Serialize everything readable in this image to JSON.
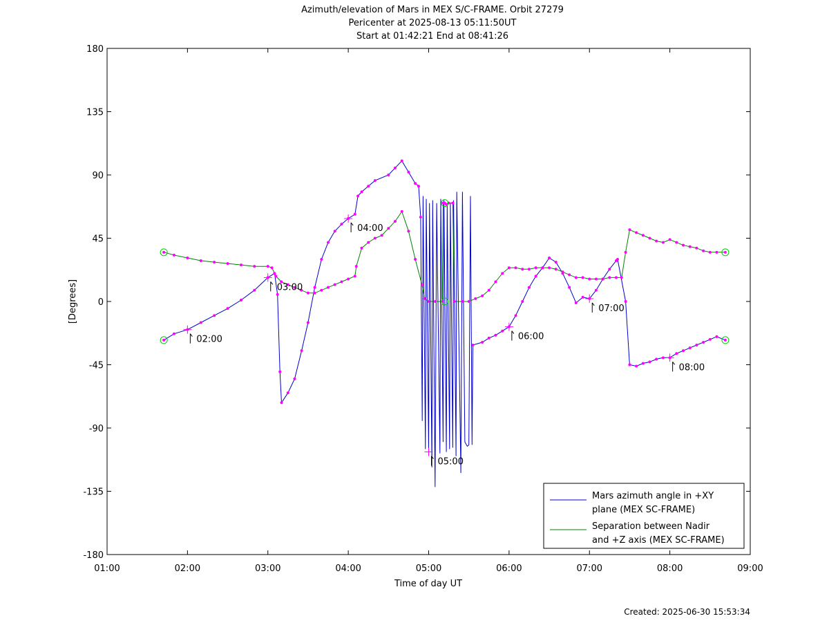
{
  "chart_data": {
    "type": "line",
    "title_lines": [
      "Azimuth/elevation of Mars in MEX S/C-FRAME.  Orbit 27279",
      "Pericenter at 2025-08-13 05:11:50UT",
      "Start at 01:42:21 End at 08:41:26"
    ],
    "xlabel": "Time of day UT",
    "ylabel": "[Degrees]",
    "xlim": [
      1,
      9
    ],
    "ylim": [
      -180,
      180
    ],
    "x_ticks": [
      {
        "v": 1,
        "label": "01:00"
      },
      {
        "v": 2,
        "label": "02:00"
      },
      {
        "v": 3,
        "label": "03:00"
      },
      {
        "v": 4,
        "label": "04:00"
      },
      {
        "v": 5,
        "label": "05:00"
      },
      {
        "v": 6,
        "label": "06:00"
      },
      {
        "v": 7,
        "label": "07:00"
      },
      {
        "v": 8,
        "label": "08:00"
      },
      {
        "v": 9,
        "label": "09:00"
      }
    ],
    "y_ticks": [
      {
        "v": 180,
        "label": "180"
      },
      {
        "v": 135,
        "label": "135"
      },
      {
        "v": 90,
        "label": "90"
      },
      {
        "v": 45,
        "label": "45"
      },
      {
        "v": 0,
        "label": "0"
      },
      {
        "v": -45,
        "label": "-45"
      },
      {
        "v": -90,
        "label": "-90"
      },
      {
        "v": -135,
        "label": "-135"
      },
      {
        "v": -180,
        "label": "-180"
      }
    ],
    "grid": false,
    "legend_position": "bottom-right",
    "colors": {
      "azimuth": "#0000cc",
      "separation": "#008000",
      "marker": "#ff00ff",
      "endpoint": "#00cc00"
    },
    "series": [
      {
        "name_lines": [
          "Mars azimuth angle in +XY",
          "plane (MEX SC-FRAME)"
        ],
        "color": "#0000cc",
        "points": [
          [
            1.706,
            -27.5
          ],
          [
            1.833,
            -23
          ],
          [
            2.0,
            -20
          ],
          [
            2.167,
            -15
          ],
          [
            2.333,
            -10
          ],
          [
            2.5,
            -5
          ],
          [
            2.667,
            1
          ],
          [
            2.833,
            8
          ],
          [
            3.0,
            17
          ],
          [
            3.083,
            20
          ],
          [
            3.12,
            5
          ],
          [
            3.15,
            -50
          ],
          [
            3.17,
            -72
          ],
          [
            3.25,
            -65
          ],
          [
            3.333,
            -55
          ],
          [
            3.42,
            -35
          ],
          [
            3.5,
            -15
          ],
          [
            3.583,
            10
          ],
          [
            3.667,
            30
          ],
          [
            3.75,
            42
          ],
          [
            3.833,
            50
          ],
          [
            3.917,
            55
          ],
          [
            4.0,
            59
          ],
          [
            4.083,
            62
          ],
          [
            4.12,
            75
          ],
          [
            4.167,
            78
          ],
          [
            4.25,
            82
          ],
          [
            4.333,
            86
          ],
          [
            4.5,
            90
          ],
          [
            4.583,
            95
          ],
          [
            4.667,
            100
          ],
          [
            4.75,
            92
          ],
          [
            4.833,
            84
          ],
          [
            4.875,
            82
          ],
          [
            4.9,
            60
          ],
          [
            4.92,
            -85
          ],
          [
            4.93,
            75
          ],
          [
            4.96,
            -105
          ],
          [
            4.97,
            73
          ],
          [
            5.0,
            -107
          ],
          [
            5.01,
            70
          ],
          [
            5.04,
            -118
          ],
          [
            5.05,
            72
          ],
          [
            5.08,
            -132
          ],
          [
            5.1,
            70
          ],
          [
            5.14,
            -108
          ],
          [
            5.15,
            73
          ],
          [
            5.18,
            -100
          ],
          [
            5.19,
            72
          ],
          [
            5.22,
            -107
          ],
          [
            5.23,
            70
          ],
          [
            5.26,
            -105
          ],
          [
            5.27,
            70
          ],
          [
            5.3,
            -104
          ],
          [
            5.31,
            72
          ],
          [
            5.34,
            -110
          ],
          [
            5.35,
            78
          ],
          [
            5.4,
            -122
          ],
          [
            5.42,
            78
          ],
          [
            5.45,
            -100
          ],
          [
            5.48,
            -103
          ],
          [
            5.5,
            -102
          ],
          [
            5.52,
            75
          ],
          [
            5.54,
            -102
          ],
          [
            5.55,
            -31
          ],
          [
            5.667,
            -29
          ],
          [
            5.75,
            -26
          ],
          [
            5.833,
            -24
          ],
          [
            5.917,
            -21
          ],
          [
            6.0,
            -18
          ],
          [
            6.083,
            -10
          ],
          [
            6.167,
            0
          ],
          [
            6.25,
            10
          ],
          [
            6.333,
            18
          ],
          [
            6.417,
            24
          ],
          [
            6.5,
            31
          ],
          [
            6.583,
            28
          ],
          [
            6.667,
            20
          ],
          [
            6.75,
            10
          ],
          [
            6.833,
            -1
          ],
          [
            6.917,
            3
          ],
          [
            7.0,
            2
          ],
          [
            7.083,
            8
          ],
          [
            7.167,
            16
          ],
          [
            7.25,
            23
          ],
          [
            7.333,
            29
          ],
          [
            7.35,
            30
          ],
          [
            7.45,
            0
          ],
          [
            7.5,
            -45
          ],
          [
            7.583,
            -46
          ],
          [
            7.667,
            -44
          ],
          [
            7.75,
            -43
          ],
          [
            7.833,
            -41
          ],
          [
            7.917,
            -40
          ],
          [
            8.0,
            -40
          ],
          [
            8.083,
            -37
          ],
          [
            8.167,
            -35
          ],
          [
            8.25,
            -33
          ],
          [
            8.333,
            -31
          ],
          [
            8.417,
            -29
          ],
          [
            8.5,
            -27
          ],
          [
            8.583,
            -25
          ],
          [
            8.69,
            -27.5
          ]
        ]
      },
      {
        "name_lines": [
          "Separation between Nadir",
          "and +Z axis (MEX SC-FRAME)"
        ],
        "color": "#008000",
        "points": [
          [
            1.706,
            35
          ],
          [
            1.833,
            33
          ],
          [
            2.0,
            31
          ],
          [
            2.167,
            29
          ],
          [
            2.333,
            28
          ],
          [
            2.5,
            27
          ],
          [
            2.667,
            26
          ],
          [
            2.833,
            25
          ],
          [
            3.0,
            25
          ],
          [
            3.05,
            24
          ],
          [
            3.1,
            18
          ],
          [
            3.167,
            14
          ],
          [
            3.25,
            12
          ],
          [
            3.333,
            10
          ],
          [
            3.417,
            8
          ],
          [
            3.5,
            6
          ],
          [
            3.583,
            6
          ],
          [
            3.667,
            8
          ],
          [
            3.75,
            10
          ],
          [
            3.833,
            12
          ],
          [
            3.917,
            14
          ],
          [
            4.0,
            16
          ],
          [
            4.083,
            18
          ],
          [
            4.1,
            25
          ],
          [
            4.167,
            38
          ],
          [
            4.25,
            42
          ],
          [
            4.333,
            45
          ],
          [
            4.417,
            47
          ],
          [
            4.5,
            52
          ],
          [
            4.583,
            57
          ],
          [
            4.667,
            64
          ],
          [
            4.75,
            50
          ],
          [
            4.833,
            30
          ],
          [
            4.917,
            12
          ],
          [
            4.95,
            2
          ],
          [
            5.0,
            0
          ],
          [
            5.083,
            0
          ],
          [
            5.17,
            0
          ],
          [
            5.18,
            70
          ],
          [
            5.2,
            70
          ],
          [
            5.22,
            69
          ],
          [
            5.25,
            70
          ],
          [
            5.3,
            70
          ],
          [
            5.32,
            0
          ],
          [
            5.417,
            0
          ],
          [
            5.5,
            0
          ],
          [
            5.583,
            2
          ],
          [
            5.667,
            4
          ],
          [
            5.75,
            8
          ],
          [
            5.833,
            14
          ],
          [
            5.917,
            20
          ],
          [
            6.0,
            24
          ],
          [
            6.083,
            24
          ],
          [
            6.167,
            23
          ],
          [
            6.25,
            23
          ],
          [
            6.333,
            24
          ],
          [
            6.417,
            24
          ],
          [
            6.5,
            24
          ],
          [
            6.583,
            23
          ],
          [
            6.667,
            21
          ],
          [
            6.75,
            19
          ],
          [
            6.833,
            17
          ],
          [
            6.917,
            17
          ],
          [
            7.0,
            16
          ],
          [
            7.083,
            16
          ],
          [
            7.167,
            16
          ],
          [
            7.25,
            17
          ],
          [
            7.333,
            17
          ],
          [
            7.4,
            17
          ],
          [
            7.45,
            35
          ],
          [
            7.5,
            51
          ],
          [
            7.583,
            49
          ],
          [
            7.667,
            47
          ],
          [
            7.75,
            45
          ],
          [
            7.833,
            43
          ],
          [
            7.917,
            42
          ],
          [
            8.0,
            44
          ],
          [
            8.083,
            42
          ],
          [
            8.167,
            40
          ],
          [
            8.25,
            39
          ],
          [
            8.333,
            38
          ],
          [
            8.417,
            36
          ],
          [
            8.5,
            35
          ],
          [
            8.583,
            35
          ],
          [
            8.69,
            35
          ]
        ]
      }
    ],
    "hour_annotations": [
      {
        "x": 2.0,
        "y": -20,
        "label": "02:00"
      },
      {
        "x": 3.0,
        "y": 17,
        "label": "03:00"
      },
      {
        "x": 4.0,
        "y": 59,
        "label": "04:00"
      },
      {
        "x": 5.0,
        "y": -107,
        "label": "05:00"
      },
      {
        "x": 6.0,
        "y": -18,
        "label": "06:00"
      },
      {
        "x": 7.0,
        "y": 2,
        "label": "07:00"
      },
      {
        "x": 8.0,
        "y": -40,
        "label": "08:00"
      }
    ],
    "endpoints": [
      {
        "x": 1.706,
        "y": 35
      },
      {
        "x": 1.706,
        "y": -27.5
      },
      {
        "x": 8.69,
        "y": 35
      },
      {
        "x": 8.69,
        "y": -27.5
      },
      {
        "x": 5.2,
        "y": 70
      },
      {
        "x": 5.2,
        "y": 0
      }
    ]
  },
  "footer": {
    "created": "Created: 2025-06-30 15:53:34"
  }
}
